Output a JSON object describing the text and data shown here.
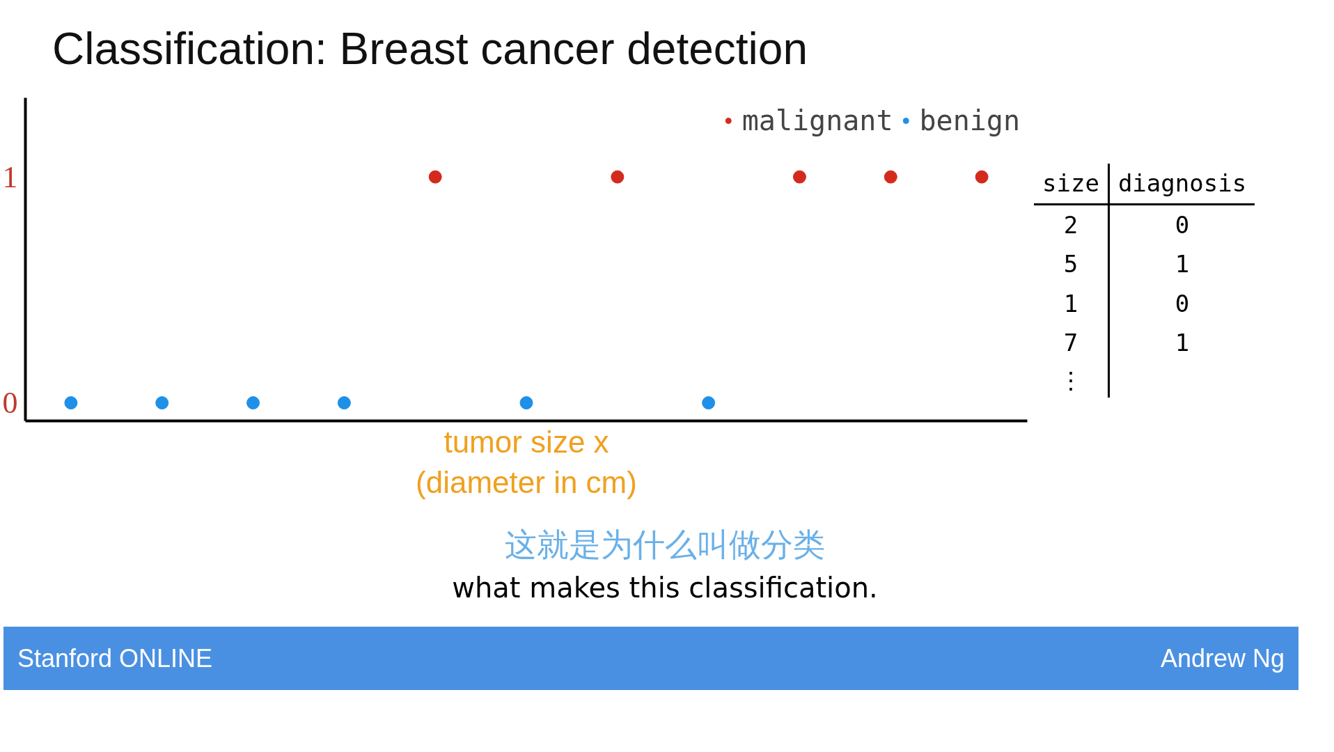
{
  "chart_data": {
    "type": "scatter",
    "title": "Classification: Breast cancer detection",
    "xlabel": "tumor size x\n(diameter in cm)",
    "categories": [
      null,
      null,
      null,
      null,
      null,
      null,
      null,
      null,
      null,
      null,
      null
    ],
    "ylim": [
      -0.08,
      1.35
    ],
    "yticks": [
      0,
      1
    ],
    "grid": false,
    "legend": "top right",
    "marker": "circle",
    "series": [
      {
        "name": "malignant",
        "color": "#d42a1e",
        "values": [
          null,
          null,
          null,
          null,
          1,
          null,
          1,
          null,
          1,
          1,
          1
        ]
      },
      {
        "name": "benign",
        "color": "#1e90e8",
        "values": [
          0,
          0,
          0,
          0,
          null,
          0,
          null,
          0,
          null,
          null,
          null
        ]
      }
    ],
    "annotations": [
      "size",
      "diagnosis",
      "2",
      "0",
      "5",
      "1",
      "1",
      "0",
      "7",
      "1",
      "⋮",
      "这就是为什么叫做分类",
      "what makes this classification.",
      "Stanford ONLINE",
      "Andrew Ng"
    ]
  }
}
